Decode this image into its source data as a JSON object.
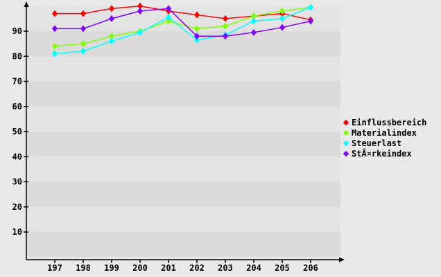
{
  "page": {
    "background_color": "#e9e9e9",
    "plot_band_light_color": "#e3e3e3",
    "plot_band_dark_color": "#dbdbdb",
    "axis_color": "#000000",
    "label_color": "#000000"
  },
  "chart_data": {
    "type": "line",
    "title": "",
    "xlabel": "",
    "ylabel": "",
    "categories": [
      "197",
      "198",
      "199",
      "200",
      "201",
      "202",
      "203",
      "204",
      "205",
      "206"
    ],
    "yticks": [
      10,
      20,
      30,
      40,
      50,
      60,
      70,
      80,
      90
    ],
    "ylim": [
      0,
      100
    ],
    "grid": "horizontal-bands",
    "marker": "diamond",
    "legend_position": "right",
    "series": [
      {
        "name": "Einflussbereich",
        "color": "#ff0000",
        "values": [
          97,
          97,
          99,
          100,
          98,
          96.5,
          95,
          96,
          97,
          94.5
        ]
      },
      {
        "name": "Materialindex",
        "color": "#7fff00",
        "values": [
          84,
          85,
          88,
          90,
          94,
          91,
          92,
          96,
          98,
          99.5
        ]
      },
      {
        "name": "Steuerlast",
        "color": "#00ffff",
        "values": [
          81,
          82,
          86,
          89.5,
          95.5,
          86.5,
          88.5,
          94,
          95,
          99.5
        ]
      },
      {
        "name": "StÃ¤rkeindex",
        "color": "#7f00ff",
        "values": [
          91,
          91,
          95,
          98,
          99,
          88,
          88,
          89.5,
          91.5,
          94
        ]
      }
    ]
  }
}
